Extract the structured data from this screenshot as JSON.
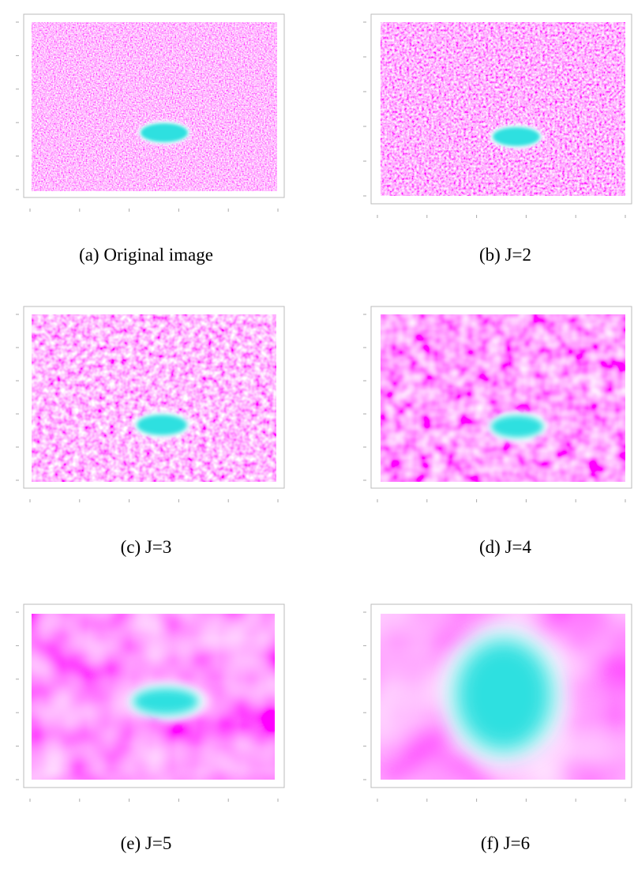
{
  "panels": [
    {
      "caption": "(a) Original image"
    },
    {
      "caption": "(b) J=2"
    },
    {
      "caption": "(c) J=3"
    },
    {
      "caption": "(d) J=4"
    },
    {
      "caption": "(e) J=5"
    },
    {
      "caption": "(f) J=6"
    }
  ]
}
